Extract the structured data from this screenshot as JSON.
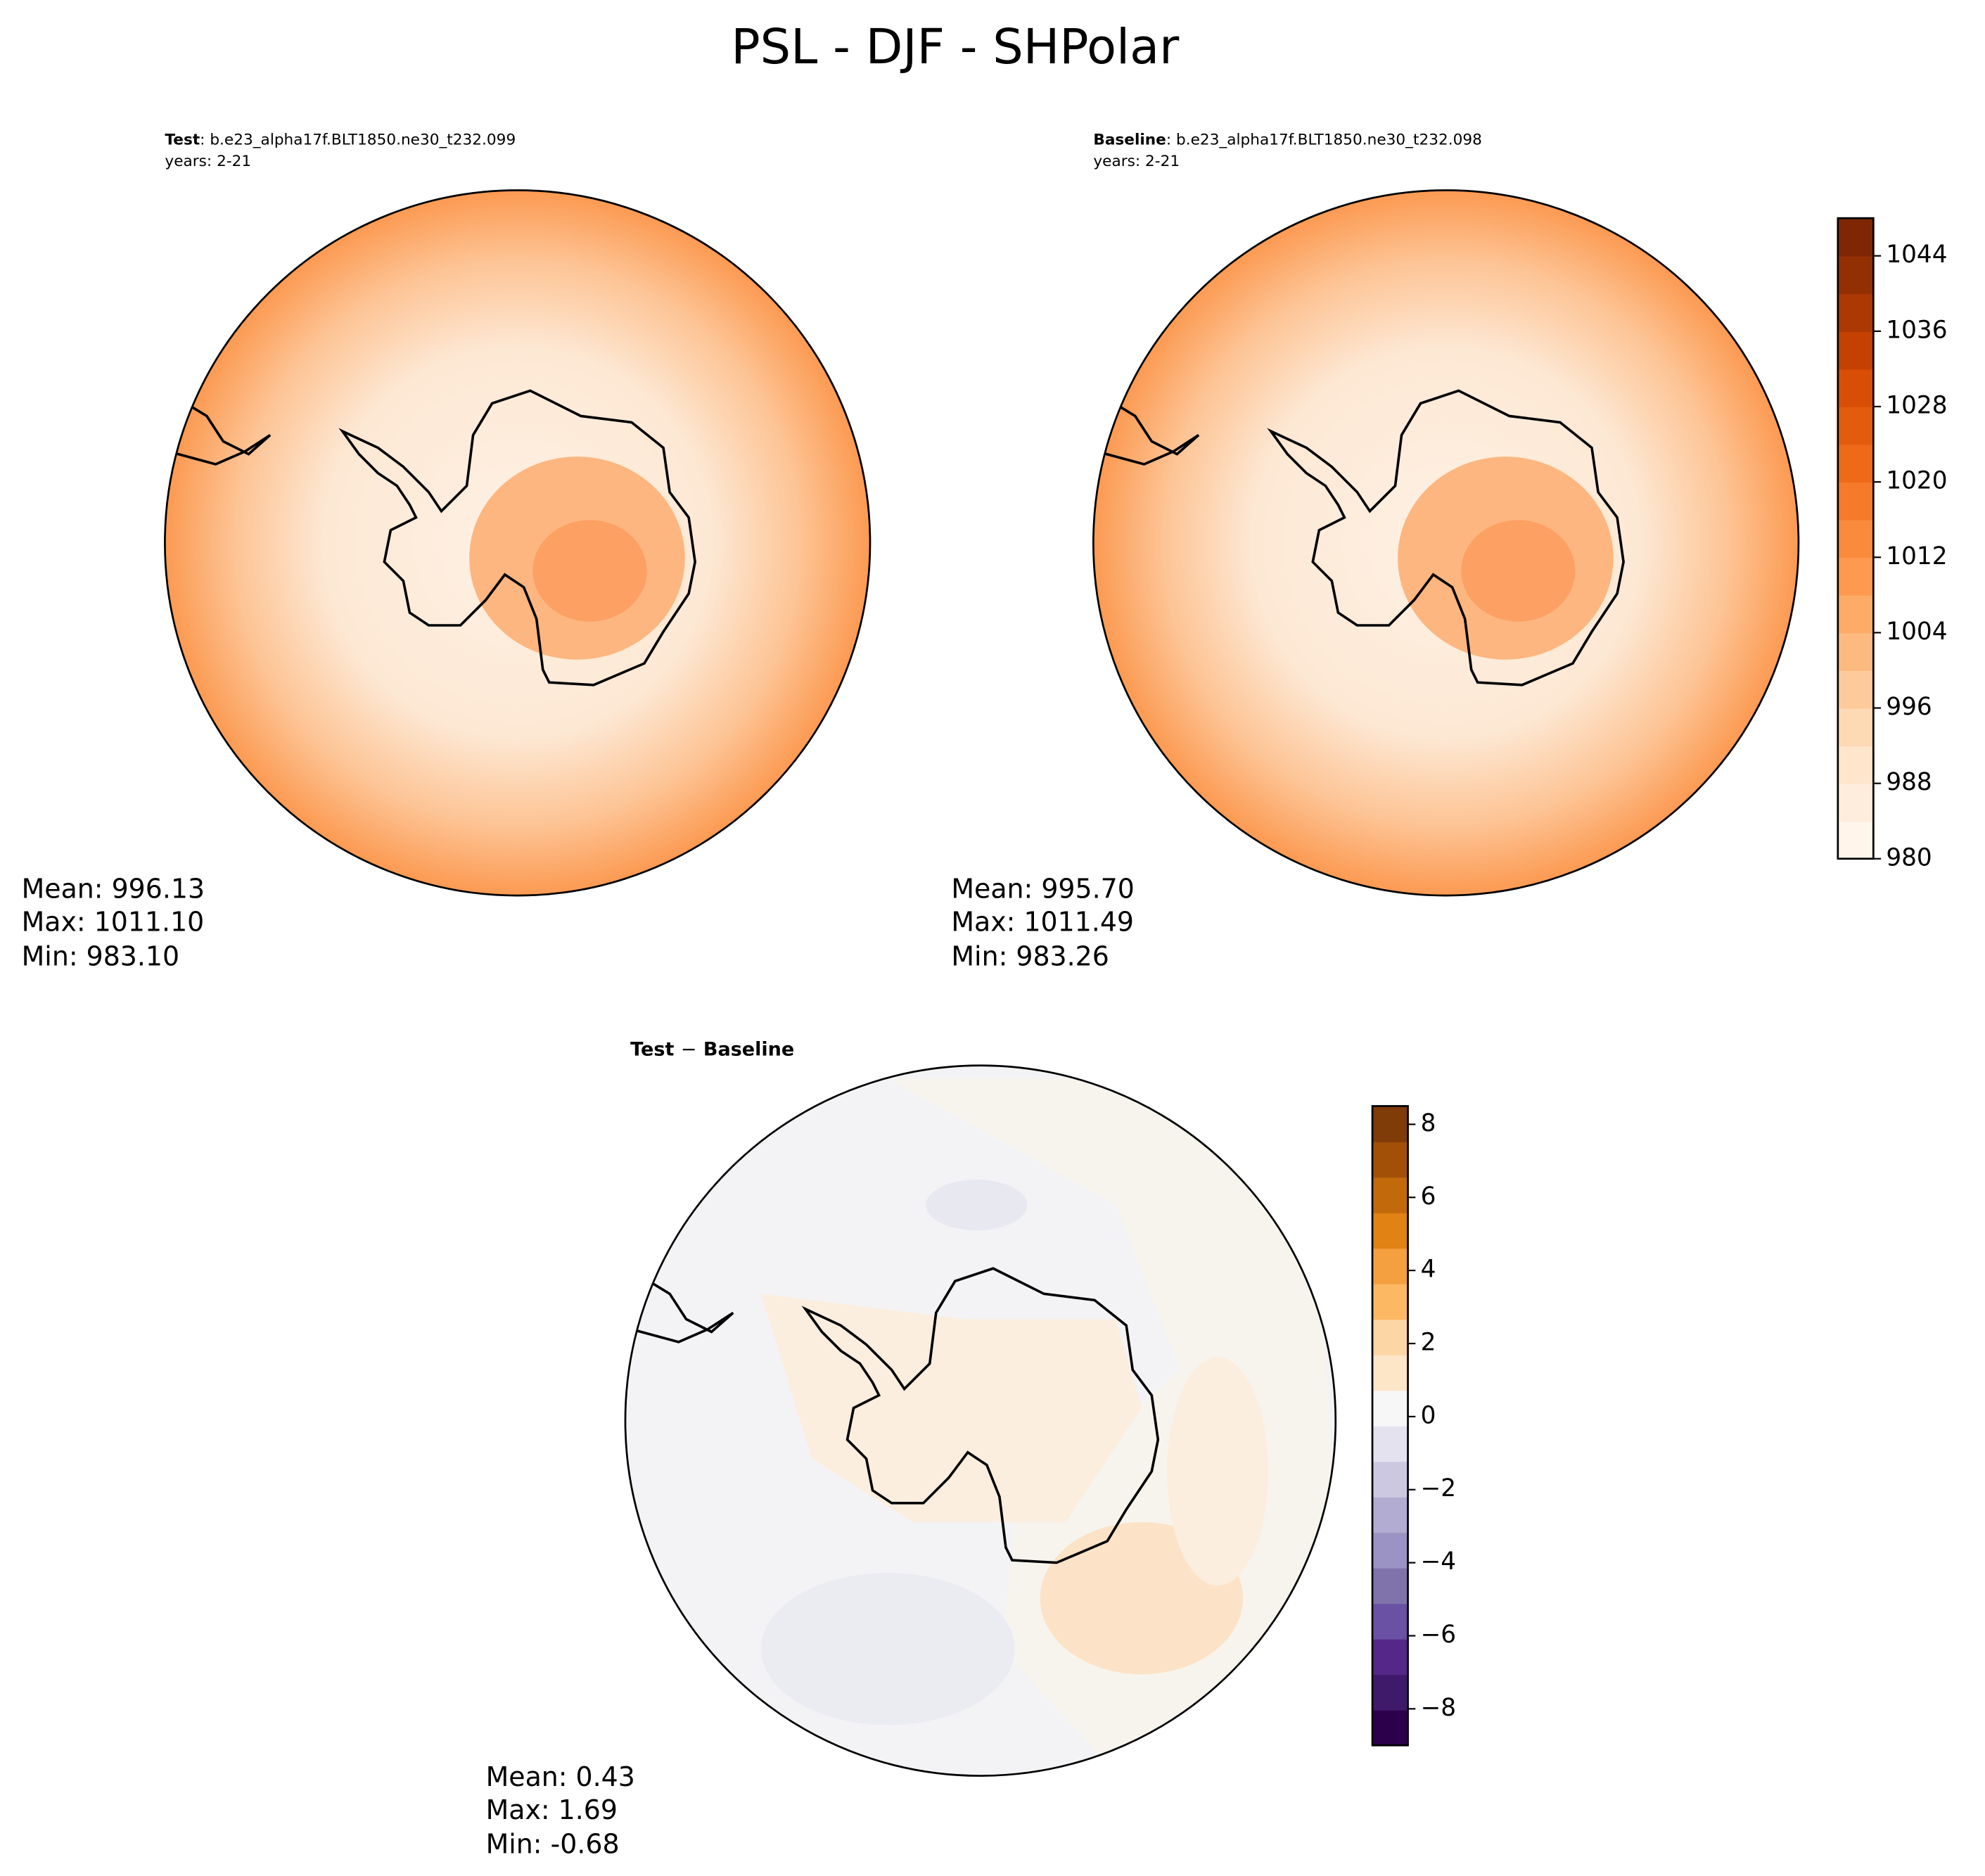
{
  "title": "PSL - DJF - SHPolar",
  "panels": [
    {
      "name": "Test",
      "case": ": b.e23_alpha17f.BLT1850.ne30_t232.099",
      "years": "years: 2-21",
      "stats": [
        "Mean: 996.13",
        "Max: 1011.10",
        "Min: 983.10"
      ]
    },
    {
      "name": "Baseline",
      "case": ": b.e23_alpha17f.BLT1850.ne30_t232.098",
      "years": "years: 2-21",
      "stats": [
        "Mean: 995.70",
        "Max: 1011.49",
        "Min: 983.26"
      ]
    }
  ],
  "difference": {
    "title_parts": [
      "Test",
      "−",
      "Baseline"
    ],
    "stats": [
      "Mean:  0.43",
      "Max:  1.69",
      "Min: -0.68"
    ]
  },
  "colorbars": [
    {
      "range": [
        980,
        1048
      ],
      "ticks": [
        980,
        988,
        996,
        1004,
        1012,
        1020,
        1028,
        1036,
        1044
      ],
      "colors": [
        "#fff5eb",
        "#feeddc",
        "#fee5cb",
        "#fdd9b4",
        "#fdcb9b",
        "#fdba80",
        "#fdab67",
        "#fd9a50",
        "#fa8a3c",
        "#f57a2a",
        "#ee6a19",
        "#e35b0d",
        "#d94e06",
        "#c44103",
        "#ac3803",
        "#933003",
        "#7f2704"
      ]
    },
    {
      "range": [
        -9,
        8.5
      ],
      "ticks": [
        {
          "value": -8,
          "label": "−8"
        },
        {
          "value": -6,
          "label": "−6"
        },
        {
          "value": -4,
          "label": "−4"
        },
        {
          "value": -2,
          "label": "−2"
        },
        0,
        2,
        4,
        6,
        8
      ],
      "colors": [
        "#2d004b",
        "#3f1a6b",
        "#542788",
        "#6a51a3",
        "#8073ac",
        "#9b93c3",
        "#b2abd2",
        "#cdc8e2",
        "#e4e2ef",
        "#f7f7f7",
        "#fde6c8",
        "#fdd6a5",
        "#fdb863",
        "#f5a040",
        "#e08214",
        "#c26a0b",
        "#a25008",
        "#7f3b08"
      ]
    }
  ]
}
